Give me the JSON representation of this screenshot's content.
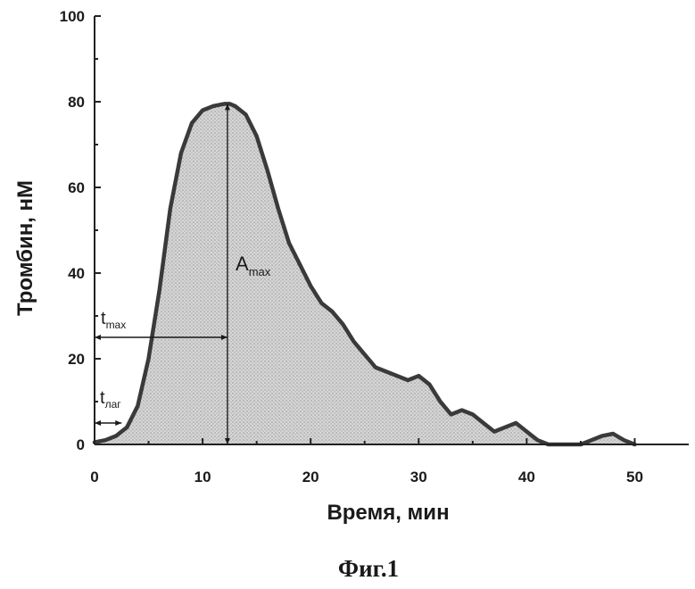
{
  "chart_data": {
    "type": "area",
    "xlabel": "Время, мин",
    "ylabel": "Тромбин, нМ",
    "xlim": [
      0,
      55
    ],
    "ylim": [
      0,
      100
    ],
    "x_ticks": [
      0,
      10,
      20,
      30,
      40,
      50
    ],
    "y_ticks": [
      0,
      20,
      40,
      60,
      80,
      100
    ],
    "x": [
      0,
      1,
      2,
      3,
      4,
      5,
      6,
      7,
      8,
      9,
      10,
      11,
      12,
      12.5,
      13,
      14,
      15,
      16,
      17,
      18,
      19,
      20,
      21,
      22,
      23,
      24,
      25,
      26,
      27,
      28,
      29,
      30,
      31,
      32,
      33,
      34,
      35,
      36,
      37,
      38,
      39,
      40,
      41,
      42,
      43,
      44,
      45,
      46,
      47,
      48,
      49,
      50
    ],
    "values": [
      0.5,
      1,
      2,
      4,
      9,
      20,
      36,
      55,
      68,
      75,
      78,
      79,
      79.5,
      79.5,
      79,
      77,
      72,
      64,
      55,
      47,
      42,
      37,
      33,
      31,
      28,
      24,
      21,
      18,
      17,
      16,
      15,
      16,
      14,
      10,
      7,
      8,
      7,
      5,
      3,
      4,
      5,
      3,
      1,
      0,
      0,
      0,
      0,
      1,
      2,
      2.5,
      1,
      0
    ],
    "fill_color": "#c8c8c8",
    "line_color": "#3a3a3a",
    "annotations": {
      "t_lag": {
        "main": "t",
        "sub": "лаг",
        "value": 2.5,
        "y": 5
      },
      "t_max": {
        "main": "t",
        "sub": "max",
        "value": 12.3,
        "y": 25
      },
      "a_max": {
        "main": "A",
        "sub": "max",
        "x": 12.3,
        "value": 79.5
      }
    }
  },
  "caption": "Фиг.1"
}
